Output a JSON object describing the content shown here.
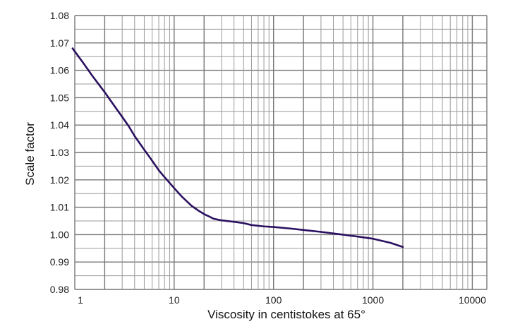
{
  "chart_data": {
    "type": "line",
    "xlabel": "Viscosity in centistokes at 65°",
    "ylabel": "Scale factor",
    "x_scale": "log",
    "xlim": [
      1,
      14000
    ],
    "ylim": [
      0.98,
      1.08
    ],
    "grid": true,
    "legend": "none",
    "x_ticks": [
      {
        "value": 1,
        "label": "1"
      },
      {
        "value": 10,
        "label": "10"
      },
      {
        "value": 100,
        "label": "100"
      },
      {
        "value": 1000,
        "label": "1000"
      },
      {
        "value": 10000,
        "label": "10000"
      }
    ],
    "y_ticks": [
      {
        "value": 0.98,
        "label": "0.98"
      },
      {
        "value": 0.99,
        "label": "0.99"
      },
      {
        "value": 1.0,
        "label": "1.00"
      },
      {
        "value": 1.01,
        "label": "1.01"
      },
      {
        "value": 1.02,
        "label": "1.02"
      },
      {
        "value": 1.03,
        "label": "1.03"
      },
      {
        "value": 1.04,
        "label": "1.04"
      },
      {
        "value": 1.05,
        "label": "1.05"
      },
      {
        "value": 1.06,
        "label": "1.06"
      },
      {
        "value": 1.07,
        "label": "1.07"
      },
      {
        "value": 1.08,
        "label": "1.08"
      }
    ],
    "series": [
      {
        "color": "#2a1160",
        "x": [
          0.95,
          1.2,
          1.5,
          2,
          2.5,
          3,
          3.5,
          4,
          5,
          6,
          7,
          8,
          10,
          12,
          15,
          18,
          20,
          22,
          25,
          30,
          40,
          50,
          60,
          80,
          100,
          150,
          200,
          300,
          500,
          700,
          1000,
          1500,
          2000
        ],
        "y": [
          1.068,
          1.063,
          1.058,
          1.052,
          1.047,
          1.043,
          1.0395,
          1.036,
          1.031,
          1.027,
          1.0235,
          1.021,
          1.017,
          1.0138,
          1.0105,
          1.0085,
          1.0075,
          1.0068,
          1.0058,
          1.0052,
          1.0047,
          1.0042,
          1.0035,
          1.003,
          1.0028,
          1.0022,
          1.0017,
          1.001,
          1.0,
          0.9993,
          0.9985,
          0.997,
          0.9955
        ]
      }
    ]
  }
}
